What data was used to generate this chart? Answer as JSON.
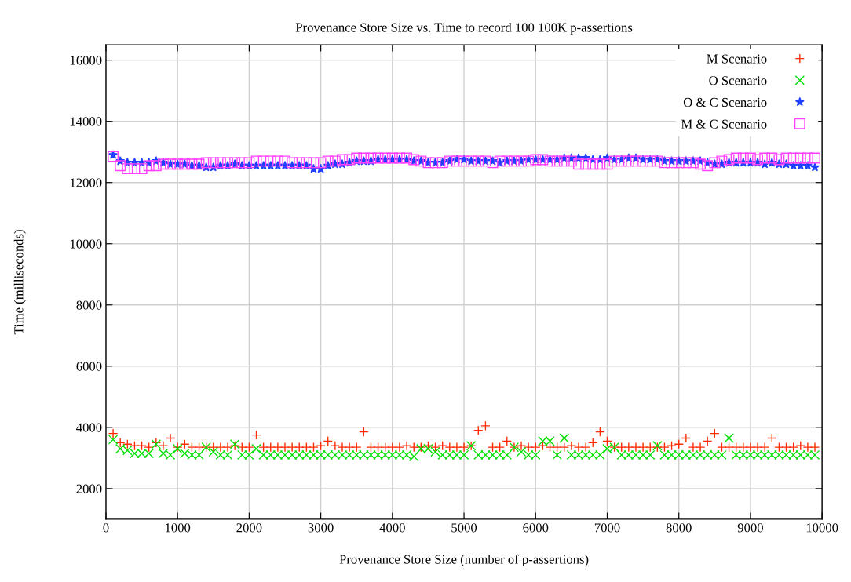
{
  "chart_data": {
    "type": "scatter",
    "title": "Provenance Store Size vs. Time to record 100 100K p-assertions",
    "xlabel": "Provenance Store Size (number of p-assertions)",
    "ylabel": "Time (milliseconds)",
    "x": [
      100,
      200,
      300,
      400,
      500,
      600,
      700,
      800,
      900,
      1000,
      1100,
      1200,
      1300,
      1400,
      1500,
      1600,
      1700,
      1800,
      1900,
      2000,
      2100,
      2200,
      2300,
      2400,
      2500,
      2600,
      2700,
      2800,
      2900,
      3000,
      3100,
      3200,
      3300,
      3400,
      3500,
      3600,
      3700,
      3800,
      3900,
      4000,
      4100,
      4200,
      4300,
      4400,
      4500,
      4600,
      4700,
      4800,
      4900,
      5000,
      5100,
      5200,
      5300,
      5400,
      5500,
      5600,
      5700,
      5800,
      5900,
      6000,
      6100,
      6200,
      6300,
      6400,
      6500,
      6600,
      6700,
      6800,
      6900,
      7000,
      7100,
      7200,
      7300,
      7400,
      7500,
      7600,
      7700,
      7800,
      7900,
      8000,
      8100,
      8200,
      8300,
      8400,
      8500,
      8600,
      8700,
      8800,
      8900,
      9000,
      9100,
      9200,
      9300,
      9400,
      9500,
      9600,
      9700,
      9800,
      9900
    ],
    "series": [
      {
        "name": "M Scenario",
        "color": "#ff2a00",
        "marker": "plus",
        "values": [
          3800,
          3500,
          3450,
          3400,
          3400,
          3350,
          3500,
          3400,
          3650,
          3350,
          3450,
          3350,
          3350,
          3350,
          3350,
          3350,
          3350,
          3400,
          3350,
          3350,
          3750,
          3350,
          3350,
          3350,
          3350,
          3350,
          3350,
          3350,
          3350,
          3400,
          3550,
          3400,
          3350,
          3350,
          3350,
          3850,
          3350,
          3350,
          3350,
          3350,
          3350,
          3400,
          3350,
          3350,
          3400,
          3350,
          3400,
          3350,
          3350,
          3350,
          3400,
          3900,
          4050,
          3350,
          3350,
          3550,
          3350,
          3400,
          3350,
          3350,
          3400,
          3350,
          3350,
          3350,
          3400,
          3350,
          3350,
          3500,
          3850,
          3550,
          3350,
          3350,
          3350,
          3350,
          3350,
          3350,
          3350,
          3350,
          3400,
          3450,
          3650,
          3350,
          3350,
          3550,
          3800,
          3350,
          3350,
          3350,
          3350,
          3350,
          3350,
          3350,
          3650,
          3350,
          3350,
          3350,
          3400,
          3350,
          3350
        ]
      },
      {
        "name": "O Scenario",
        "color": "#00e000",
        "marker": "cross",
        "values": [
          3600,
          3300,
          3250,
          3150,
          3150,
          3150,
          3450,
          3150,
          3100,
          3300,
          3150,
          3100,
          3100,
          3350,
          3200,
          3100,
          3100,
          3450,
          3100,
          3100,
          3300,
          3100,
          3100,
          3100,
          3100,
          3100,
          3100,
          3100,
          3100,
          3100,
          3100,
          3100,
          3100,
          3100,
          3100,
          3100,
          3100,
          3100,
          3100,
          3100,
          3100,
          3100,
          3050,
          3300,
          3300,
          3200,
          3100,
          3100,
          3100,
          3100,
          3400,
          3100,
          3100,
          3100,
          3100,
          3100,
          3350,
          3200,
          3100,
          3100,
          3550,
          3550,
          3100,
          3650,
          3100,
          3100,
          3100,
          3100,
          3100,
          3300,
          3350,
          3100,
          3100,
          3100,
          3100,
          3100,
          3400,
          3100,
          3100,
          3100,
          3100,
          3100,
          3100,
          3100,
          3100,
          3100,
          3650,
          3100,
          3100,
          3100,
          3100,
          3100,
          3100,
          3100,
          3100,
          3100,
          3100,
          3100,
          3100
        ]
      },
      {
        "name": "O & C Scenario",
        "color": "#2040ff",
        "marker": "star",
        "values": [
          12900,
          12700,
          12650,
          12650,
          12650,
          12650,
          12700,
          12650,
          12600,
          12600,
          12600,
          12550,
          12550,
          12500,
          12500,
          12550,
          12550,
          12600,
          12550,
          12550,
          12550,
          12550,
          12550,
          12550,
          12550,
          12550,
          12550,
          12550,
          12450,
          12450,
          12550,
          12600,
          12600,
          12650,
          12700,
          12700,
          12700,
          12750,
          12750,
          12750,
          12750,
          12750,
          12700,
          12700,
          12650,
          12650,
          12650,
          12700,
          12750,
          12750,
          12700,
          12700,
          12700,
          12700,
          12650,
          12700,
          12700,
          12700,
          12750,
          12750,
          12750,
          12750,
          12750,
          12800,
          12800,
          12800,
          12800,
          12750,
          12750,
          12800,
          12750,
          12750,
          12800,
          12800,
          12750,
          12750,
          12750,
          12700,
          12700,
          12700,
          12700,
          12700,
          12700,
          12650,
          12600,
          12600,
          12650,
          12650,
          12650,
          12650,
          12650,
          12600,
          12650,
          12600,
          12600,
          12550,
          12550,
          12550,
          12500
        ]
      },
      {
        "name": "M & C Scenario",
        "color": "#ff40ff",
        "marker": "square",
        "values": [
          12850,
          12550,
          12450,
          12450,
          12450,
          12550,
          12550,
          12600,
          12600,
          12600,
          12600,
          12600,
          12600,
          12650,
          12650,
          12650,
          12650,
          12650,
          12650,
          12650,
          12700,
          12700,
          12700,
          12700,
          12700,
          12650,
          12650,
          12650,
          12650,
          12650,
          12700,
          12700,
          12750,
          12750,
          12800,
          12800,
          12800,
          12800,
          12800,
          12800,
          12800,
          12800,
          12750,
          12700,
          12650,
          12650,
          12650,
          12700,
          12700,
          12700,
          12700,
          12700,
          12700,
          12650,
          12700,
          12700,
          12700,
          12700,
          12700,
          12750,
          12750,
          12700,
          12700,
          12700,
          12700,
          12600,
          12600,
          12600,
          12600,
          12600,
          12700,
          12700,
          12700,
          12700,
          12700,
          12700,
          12700,
          12650,
          12650,
          12650,
          12650,
          12650,
          12600,
          12550,
          12650,
          12700,
          12750,
          12800,
          12800,
          12800,
          12750,
          12800,
          12800,
          12750,
          12800,
          12800,
          12800,
          12800,
          12800
        ]
      }
    ],
    "xlim": [
      0,
      10000
    ],
    "xticks": [
      0,
      1000,
      2000,
      3000,
      4000,
      5000,
      6000,
      7000,
      8000,
      9000,
      10000
    ],
    "ylim": [
      1000,
      16500
    ],
    "yticks": [
      2000,
      4000,
      6000,
      8000,
      10000,
      12000,
      14000,
      16000
    ],
    "grid": true,
    "legend": "top right"
  }
}
